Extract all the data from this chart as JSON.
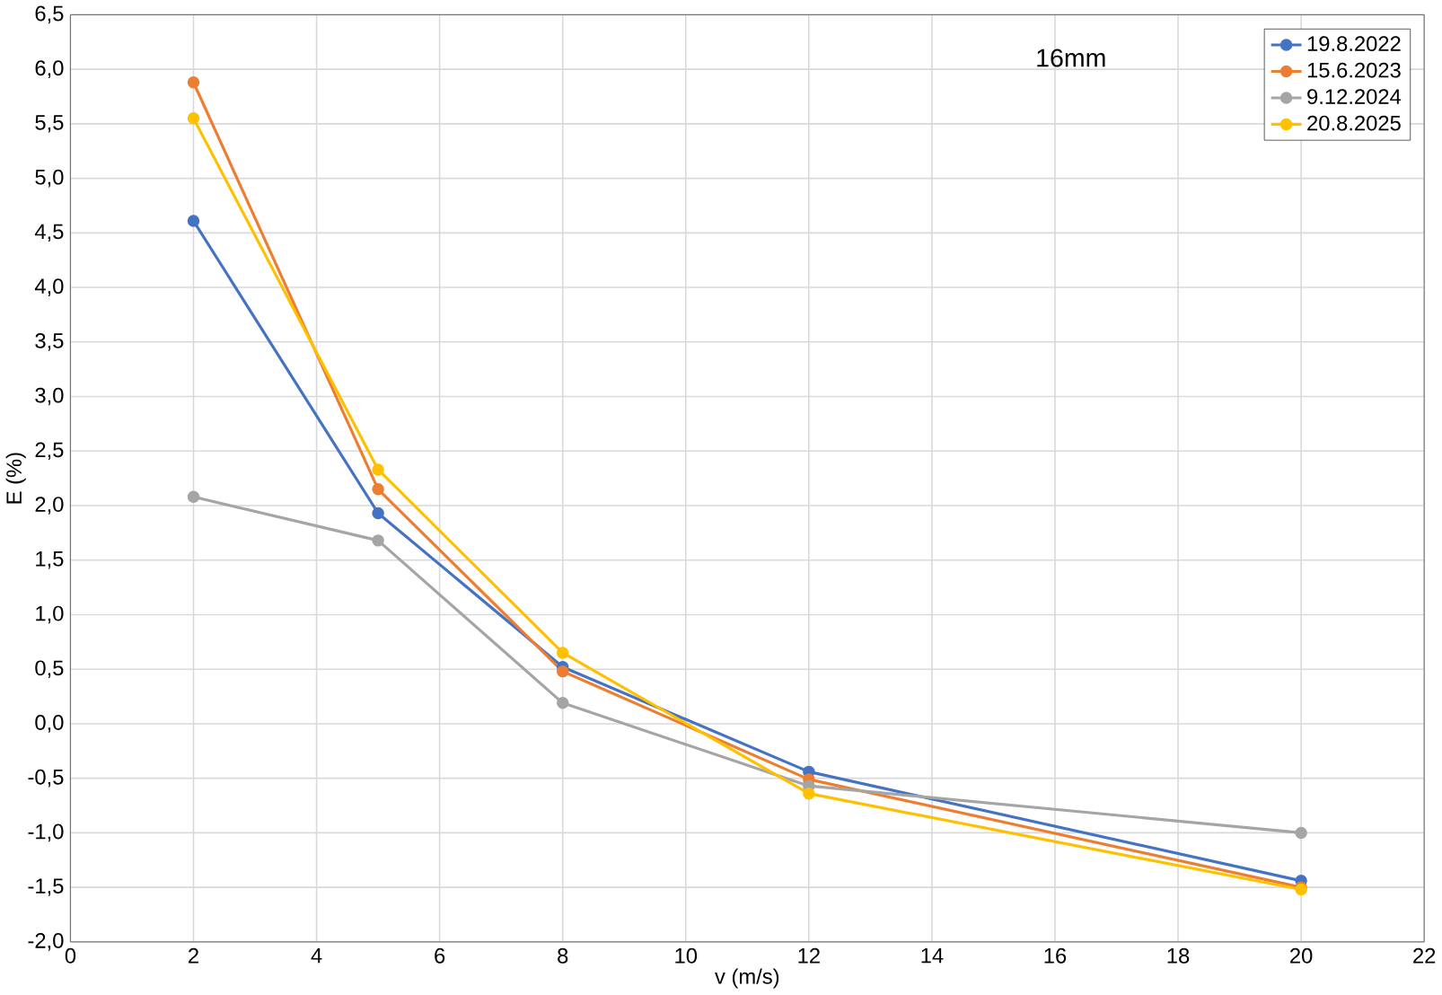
{
  "chart_data": {
    "type": "line",
    "xlabel": "v (m/s)",
    "ylabel": "E (%)",
    "annotations": [
      "16mm"
    ],
    "x": [
      2,
      5,
      8,
      12,
      20
    ],
    "series": [
      {
        "name": "19.8.2022",
        "color": "#4472c4",
        "values": [
          4.61,
          1.93,
          0.52,
          -0.44,
          -1.44
        ]
      },
      {
        "name": "15.6.2023",
        "color": "#ed7d31",
        "values": [
          5.88,
          2.15,
          0.48,
          -0.51,
          -1.5
        ]
      },
      {
        "name": "9.12.2024",
        "color": "#a5a5a5",
        "values": [
          2.08,
          1.68,
          0.19,
          -0.57,
          -1.0
        ]
      },
      {
        "name": "20.8.2025",
        "color": "#ffc000",
        "values": [
          5.55,
          2.33,
          0.65,
          -0.64,
          -1.52
        ]
      }
    ],
    "xlim": [
      0,
      22
    ],
    "xticks": [
      0,
      2,
      4,
      6,
      8,
      10,
      12,
      14,
      16,
      18,
      20,
      22
    ],
    "ylim": [
      -2.0,
      6.5
    ],
    "yticks": [
      {
        "value": -2.0,
        "label": "-2,0"
      },
      {
        "value": -1.5,
        "label": "-1,5"
      },
      {
        "value": -1.0,
        "label": "-1,0"
      },
      {
        "value": -0.5,
        "label": "-0,5"
      },
      {
        "value": 0.0,
        "label": "0,0"
      },
      {
        "value": 0.5,
        "label": "0,5"
      },
      {
        "value": 1.0,
        "label": "1,0"
      },
      {
        "value": 1.5,
        "label": "1,5"
      },
      {
        "value": 2.0,
        "label": "2,0"
      },
      {
        "value": 2.5,
        "label": "2,5"
      },
      {
        "value": 3.0,
        "label": "3,0"
      },
      {
        "value": 3.5,
        "label": "3,5"
      },
      {
        "value": 4.0,
        "label": "4,0"
      },
      {
        "value": 4.5,
        "label": "4,5"
      },
      {
        "value": 5.0,
        "label": "5,0"
      },
      {
        "value": 5.5,
        "label": "5,5"
      },
      {
        "value": 6.0,
        "label": "6,0"
      },
      {
        "value": 6.5,
        "label": "6,5"
      }
    ],
    "grid": true,
    "legend": "top right",
    "marker": "circle",
    "line_style": "solid"
  }
}
